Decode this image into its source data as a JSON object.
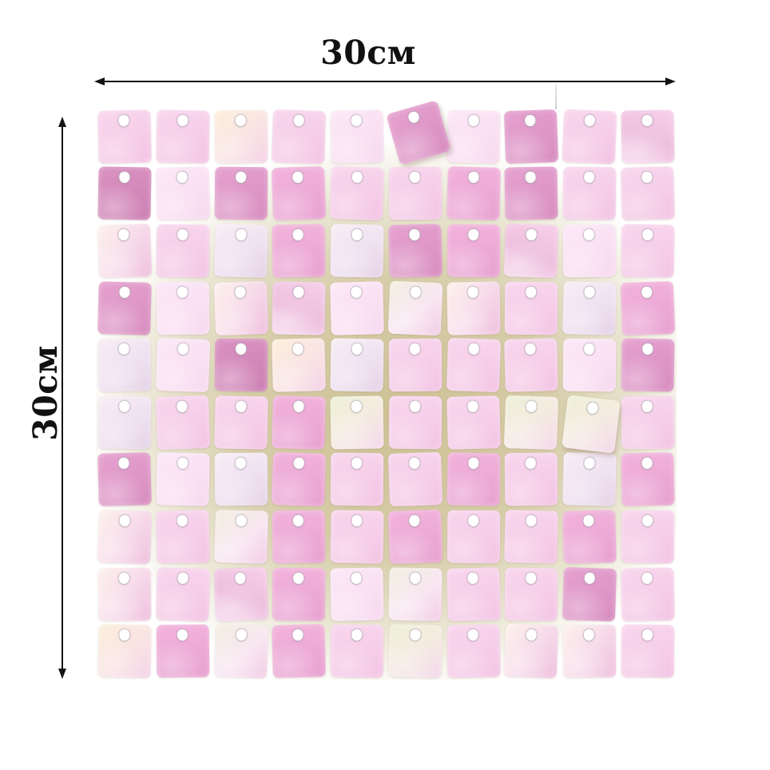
{
  "dimensions": {
    "width_label": "30см",
    "height_label": "30см"
  },
  "colors": {
    "background": "#ffffff",
    "arrow": "#141414",
    "label_text": "#111111",
    "backing_center": "#cdc194",
    "backing_mid": "#d6cca8",
    "backing_edge": "#ffffff",
    "hole": "#ffffff"
  },
  "panel": {
    "rows": 10,
    "cols": 10,
    "palette": {
      "l1": "linear-gradient(165deg,#f9d7ee 0%,#f3c4e4 100%)",
      "l2": "linear-gradient(150deg,#fce9f7 0%,#f7d9ef 100%)",
      "l3": "linear-gradient(200deg,#f7cfe9 0%,#eebfdf 55%,#f6d6ec 100%)",
      "m1": "linear-gradient(170deg,#f2b3dc 0%,#e8a0d0 100%)",
      "m2": "linear-gradient(155deg,#e6a2d0 0%,#d78cbf 100%)",
      "d1": "linear-gradient(165deg,#da92c2 0%,#cc7fb2 100%)",
      "i1": "linear-gradient(140deg,#f2f0e0 0%,#f8e6f1 55%,#f2cde6 100%)",
      "i2": "linear-gradient(125deg,#fdf2ec 0%,#f7dcea 50%,#efc0de 100%)",
      "w1": "linear-gradient(150deg,#f8eff5 0%,#eedff0 60%,#e5d3e6 100%)",
      "y1": "linear-gradient(140deg,#fcf0dc 0%,#f9e3e3 55%,#f5d3e8 100%)",
      "g1": "linear-gradient(145deg,#edf0d8 0%,#f4ecdf 45%,#f4d9ec 100%)"
    },
    "cells": [
      [
        "l1:-1.5",
        "l1:1",
        "y1:-0.5",
        "l1:2",
        "l2:-1",
        "m2:-16:4:-5",
        "l2:1.5",
        "m2:-2",
        "l1:2.5",
        "l3:-1"
      ],
      [
        "d1:1",
        "l2:-1.5",
        "m2:0.5",
        "m1:-2",
        "l1:2",
        "l1:-0.5",
        "m1:1.5",
        "m2:-1",
        "l1:0.5",
        "l1:-1.5"
      ],
      [
        "i2:-2",
        "l1:0.5",
        "w1:1.5",
        "m1:-1",
        "w1:1",
        "m2:-1.5",
        "m1:0.5",
        "l3:2",
        "l2:-0.5",
        "l1:1"
      ],
      [
        "m2:1.5",
        "l2:-0.5",
        "i2:-2",
        "l3:1",
        "l2:-1.5",
        "i1:2.5",
        "i2:-1",
        "l1:0.5",
        "w1:1.5",
        "m1:-2"
      ],
      [
        "w1:-1",
        "l2:2",
        "d1:0.5",
        "y1:-1.5",
        "w1:1",
        "l1:-0.5",
        "l1:2",
        "l1:-1.5",
        "l2:0.5",
        "m2:1"
      ],
      [
        "w1:0.5",
        "l1:-2",
        "l1:1",
        "m1:1.5",
        "g1:-1",
        "l1:0.5",
        "l1:-1.5",
        "g1:2",
        "g1:7:2:2",
        "l1:-0.5"
      ],
      [
        "m2:-1.5",
        "l2:1",
        "w1:-0.5",
        "m1:2",
        "l1:0.5",
        "l1:-2",
        "m1:1",
        "l1:-0.5",
        "w1:1.5",
        "m1:-1"
      ],
      [
        "i2:2",
        "l1:-1",
        "i1:1.5",
        "m1:-0.5",
        "l1:1",
        "m1:-2",
        "l1:0.5",
        "l1:1.5",
        "m1:-1.5",
        "l1:0.5"
      ],
      [
        "i2:-0.5",
        "l1:1.5",
        "l3:-2",
        "m1:0.5",
        "l2:-1",
        "i1:1",
        "l1:-1.5",
        "l1:0.5",
        "m2:2",
        "l1:-1"
      ],
      [
        "y1:1",
        "m1:-0.5",
        "i1:2",
        "m1:-1.5",
        "l1:0.5",
        "g1:1.5",
        "l1:-1",
        "i2:2",
        "i2:-0.5",
        "l1:0.5"
      ]
    ]
  }
}
